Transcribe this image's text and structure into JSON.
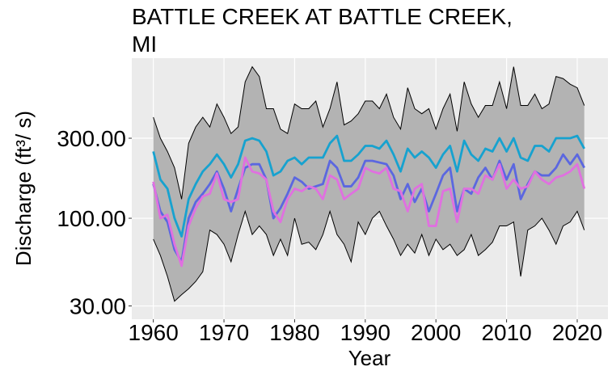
{
  "chart_data": {
    "type": "line",
    "title": [
      "BATTLE CREEK AT BATTLE CREEK,",
      "MI"
    ],
    "xlabel": "Year",
    "ylabel": "Discharge (ft³/ s)",
    "log_y": true,
    "grid": true,
    "x": [
      1960,
      1961,
      1962,
      1963,
      1964,
      1965,
      1966,
      1967,
      1968,
      1969,
      1970,
      1971,
      1972,
      1973,
      1974,
      1975,
      1976,
      1977,
      1978,
      1979,
      1980,
      1981,
      1982,
      1983,
      1984,
      1985,
      1986,
      1987,
      1988,
      1989,
      1990,
      1991,
      1992,
      1993,
      1994,
      1995,
      1996,
      1997,
      1998,
      1999,
      2000,
      2001,
      2002,
      2003,
      2004,
      2005,
      2006,
      2007,
      2008,
      2009,
      2010,
      2011,
      2012,
      2013,
      2014,
      2015,
      2016,
      2017,
      2018,
      2019,
      2020,
      2021
    ],
    "xlim": [
      1956.95,
      2024.35
    ],
    "xticks": [
      1960,
      1970,
      1980,
      1990,
      2000,
      2010,
      2020
    ],
    "ylim": [
      25,
      900
    ],
    "yticks": [
      {
        "value": 30,
        "label": "30.00"
      },
      {
        "value": 100,
        "label": "100.00"
      },
      {
        "value": 300,
        "label": "300.00"
      }
    ],
    "ribbon": {
      "color": "#b3b3b3",
      "lower": [
        75,
        60,
        45,
        32,
        35,
        38,
        42,
        48,
        85,
        80,
        70,
        55,
        80,
        110,
        80,
        90,
        80,
        60,
        75,
        60,
        100,
        70,
        72,
        65,
        80,
        110,
        80,
        70,
        55,
        95,
        80,
        100,
        110,
        90,
        75,
        60,
        70,
        62,
        80,
        60,
        75,
        65,
        70,
        60,
        65,
        80,
        60,
        65,
        72,
        90,
        90,
        95,
        45,
        85,
        90,
        100,
        85,
        70,
        90,
        95,
        110,
        85
      ],
      "upper": [
        400,
        300,
        250,
        200,
        130,
        280,
        350,
        400,
        350,
        480,
        400,
        320,
        350,
        650,
        800,
        700,
        450,
        450,
        340,
        320,
        480,
        450,
        450,
        500,
        350,
        450,
        650,
        360,
        380,
        420,
        500,
        500,
        450,
        550,
        400,
        340,
        600,
        450,
        420,
        450,
        340,
        450,
        550,
        330,
        650,
        480,
        400,
        470,
        470,
        650,
        450,
        800,
        470,
        470,
        550,
        450,
        480,
        700,
        680,
        630,
        600,
        470
      ]
    },
    "series": [
      {
        "color": "#17a2cf",
        "values": [
          250,
          170,
          150,
          100,
          78,
          130,
          160,
          190,
          210,
          240,
          210,
          175,
          210,
          290,
          300,
          290,
          250,
          180,
          190,
          220,
          230,
          210,
          230,
          230,
          230,
          280,
          310,
          220,
          220,
          240,
          270,
          270,
          260,
          290,
          240,
          190,
          260,
          230,
          250,
          230,
          200,
          240,
          270,
          190,
          290,
          240,
          220,
          260,
          250,
          300,
          250,
          300,
          230,
          220,
          270,
          270,
          250,
          300,
          300,
          300,
          310,
          260
        ]
      },
      {
        "color": "#5b67e0",
        "values": [
          160,
          110,
          95,
          65,
          55,
          100,
          125,
          140,
          160,
          190,
          150,
          110,
          150,
          200,
          210,
          210,
          170,
          100,
          115,
          140,
          175,
          165,
          150,
          155,
          160,
          220,
          200,
          155,
          155,
          175,
          220,
          220,
          215,
          210,
          180,
          130,
          160,
          125,
          150,
          110,
          140,
          180,
          200,
          110,
          150,
          140,
          175,
          200,
          170,
          220,
          170,
          210,
          130,
          160,
          190,
          180,
          180,
          200,
          240,
          210,
          240,
          200
        ]
      },
      {
        "color": "#e070e0",
        "values": [
          165,
          100,
          105,
          70,
          52,
          90,
          115,
          135,
          140,
          185,
          130,
          125,
          130,
          230,
          190,
          185,
          170,
          110,
          95,
          130,
          150,
          145,
          155,
          150,
          130,
          180,
          170,
          130,
          140,
          150,
          200,
          190,
          185,
          200,
          150,
          145,
          110,
          150,
          160,
          90,
          90,
          145,
          150,
          95,
          150,
          150,
          140,
          180,
          170,
          210,
          150,
          170,
          150,
          155,
          190,
          170,
          160,
          175,
          180,
          190,
          210,
          150
        ]
      }
    ]
  }
}
